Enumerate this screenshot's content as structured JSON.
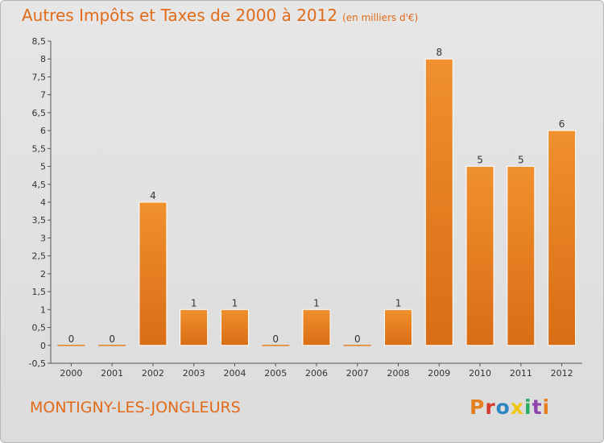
{
  "header": {
    "title": "Autres Impôts et Taxes de 2000 à 2012",
    "unit": "(en milliers d'€)"
  },
  "commune": "MONTIGNY-LES-JONGLEURS",
  "logo": {
    "text": "Proxiti",
    "colors": [
      "#e67e22",
      "#d63a2f",
      "#2e86c1",
      "#f1c40f",
      "#27ae60",
      "#8e44ad",
      "#e67e22"
    ]
  },
  "chart_data": {
    "type": "bar",
    "categories": [
      "2000",
      "2001",
      "2002",
      "2003",
      "2004",
      "2005",
      "2006",
      "2007",
      "2008",
      "2009",
      "2010",
      "2011",
      "2012"
    ],
    "values": [
      0,
      0,
      4,
      1,
      1,
      0,
      1,
      0,
      1,
      8,
      5,
      5,
      6
    ],
    "data_labels": [
      "0",
      "0",
      "4",
      "1",
      "1",
      "0",
      "1",
      "0",
      "1",
      "8",
      "5",
      "5",
      "6"
    ],
    "ylim": [
      -0.5,
      8.5
    ],
    "yticks": [
      "-0,5",
      "0",
      "0,5",
      "1",
      "1,5",
      "2",
      "2,5",
      "3",
      "3,5",
      "4",
      "4,5",
      "5",
      "5,5",
      "6",
      "6,5",
      "7",
      "7,5",
      "8",
      "8,5"
    ],
    "ytick_values": [
      -0.5,
      0,
      0.5,
      1,
      1.5,
      2,
      2.5,
      3,
      3.5,
      4,
      4.5,
      5,
      5.5,
      6,
      6.5,
      7,
      7.5,
      8,
      8.5
    ],
    "grid": false,
    "bar_color": "#f0902e",
    "bar_color_dark": "#d96d15"
  }
}
